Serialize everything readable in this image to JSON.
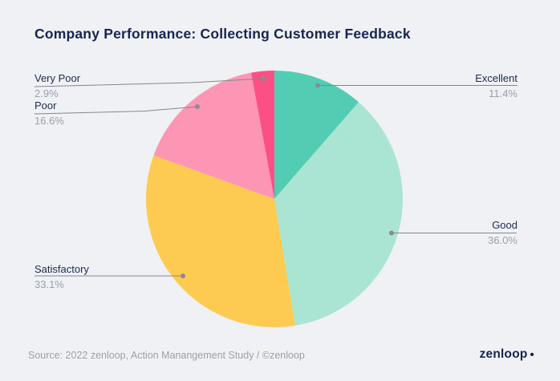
{
  "title": "Company Performance: Collecting Customer Feedback",
  "chart_data": {
    "type": "pie",
    "title": "Company Performance: Collecting Customer Feedback",
    "start_angle_deg": 0,
    "direction": "clockwise",
    "legend_position": "callout-labels",
    "slices": [
      {
        "label": "Excellent",
        "value_pct": 11.4,
        "display": "11.4%",
        "color": "#52CDB3"
      },
      {
        "label": "Good",
        "value_pct": 36.0,
        "display": "36.0%",
        "color": "#A9E5D2"
      },
      {
        "label": "Satisfactory",
        "value_pct": 33.1,
        "display": "33.1%",
        "color": "#FDCB52"
      },
      {
        "label": "Poor",
        "value_pct": 16.6,
        "display": "16.6%",
        "color": "#FD96B5"
      },
      {
        "label": "Very Poor",
        "value_pct": 2.9,
        "display": "2.9%",
        "color": "#FB5085"
      }
    ]
  },
  "footer": {
    "source": "Source: 2022 zenloop, Action Manangement Study / ©zenloop",
    "brand": "zenloop",
    "brand_dot": "•"
  },
  "colors": {
    "background": "#EFF1F4",
    "title_text": "#19254D",
    "label_text": "#1B2A4E",
    "value_text": "#9AA0AB",
    "leader_line": "#85878F",
    "leader_dot": "#8A8C94"
  }
}
